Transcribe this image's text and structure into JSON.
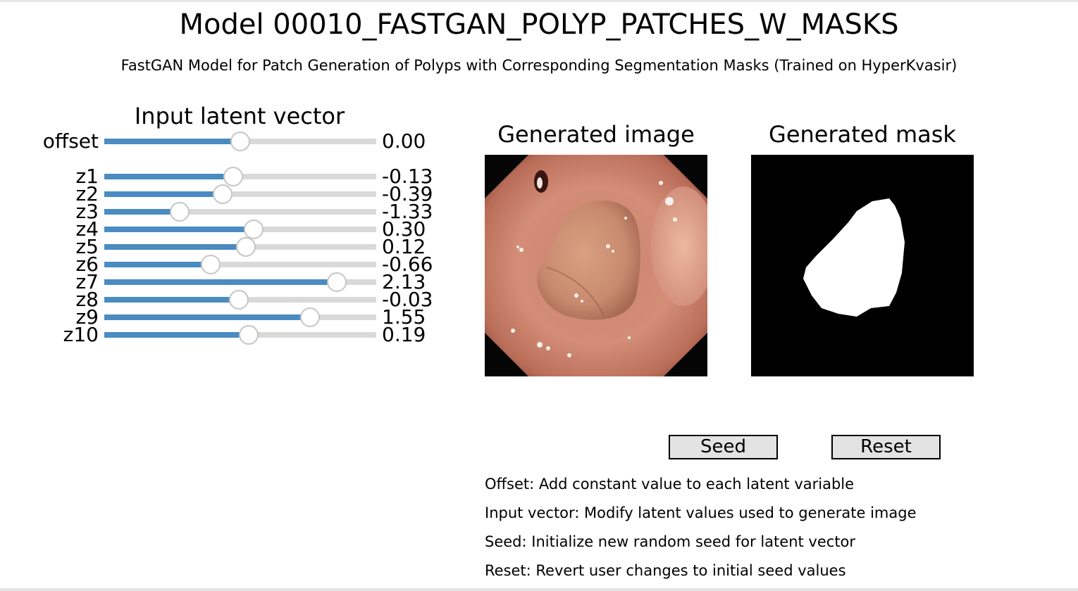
{
  "title": "Model 00010_FASTGAN_POLYP_PATCHES_W_MASKS",
  "subtitle": "FastGAN Model for Patch Generation of Polyps with Corresponding Segmentation Masks (Trained on HyperKvasir)",
  "latent_panel": {
    "title": "Input latent vector",
    "offset": {
      "label": "offset",
      "value": "0.00",
      "fraction": 0.5
    }
  },
  "sliders": [
    {
      "label": "z1",
      "value": "-0.13",
      "fraction": 0.475
    },
    {
      "label": "z2",
      "value": "-0.39",
      "fraction": 0.435
    },
    {
      "label": "z3",
      "value": "-1.33",
      "fraction": 0.277
    },
    {
      "label": "z4",
      "value": "0.30",
      "fraction": 0.55
    },
    {
      "label": "z5",
      "value": "0.12",
      "fraction": 0.52
    },
    {
      "label": "z6",
      "value": "-0.66",
      "fraction": 0.39
    },
    {
      "label": "z7",
      "value": "2.13",
      "fraction": 0.856
    },
    {
      "label": "z8",
      "value": "-0.03",
      "fraction": 0.495
    },
    {
      "label": "z9",
      "value": "1.55",
      "fraction": 0.757
    },
    {
      "label": "z10",
      "value": "0.19",
      "fraction": 0.53
    }
  ],
  "generated_image": {
    "title": "Generated image"
  },
  "generated_mask": {
    "title": "Generated mask"
  },
  "buttons": {
    "seed": "Seed",
    "reset": "Reset"
  },
  "help": [
    "Offset: Add constant value to each latent variable",
    "Input vector: Modify latent values used to generate image",
    "Seed: Initialize new random seed for latent vector",
    "Reset: Revert user changes to initial seed values"
  ],
  "colors": {
    "slider_fill": "#4a8bc2",
    "slider_track": "#d9d9d9",
    "button_bg": "#e3e3e3"
  }
}
